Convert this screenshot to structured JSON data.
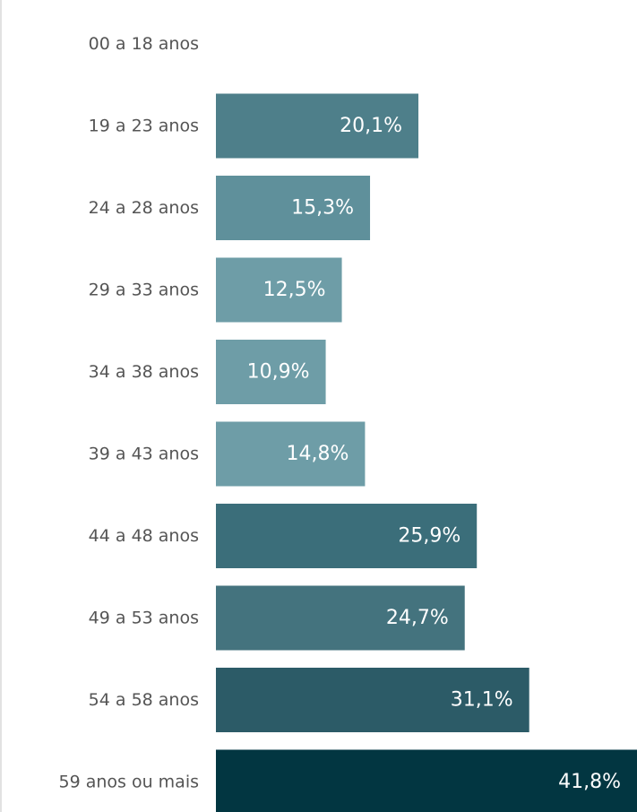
{
  "chart_data": {
    "type": "bar",
    "orientation": "horizontal",
    "categories": [
      "00 a 18 anos",
      "19 a 23 anos",
      "24 a 28 anos",
      "29 a 33 anos",
      "34 a 38 anos",
      "39 a 43 anos",
      "44 a 48 anos",
      "49 a 53 anos",
      "54 a 58 anos",
      "59 anos ou mais"
    ],
    "values": [
      0,
      20.1,
      15.3,
      12.5,
      10.9,
      14.8,
      25.9,
      24.7,
      31.1,
      41.8
    ],
    "value_labels": [
      "",
      "20,1%",
      "15,3%",
      "12,5%",
      "10,9%",
      "14,8%",
      "25,9%",
      "24,7%",
      "31,1%",
      "41,8%"
    ],
    "bar_colors": [
      "#4e7f8a",
      "#4e7f8a",
      "#5f909b",
      "#6e9da7",
      "#6e9da7",
      "#6e9da7",
      "#3b6e7a",
      "#44737e",
      "#2c5b67",
      "#023641"
    ],
    "label_color": "#555555",
    "value_label_color": "#ffffff",
    "title": "",
    "xlabel": "",
    "ylabel": "",
    "xlim": [
      0,
      41.8
    ],
    "grid": false,
    "legend": "none"
  }
}
